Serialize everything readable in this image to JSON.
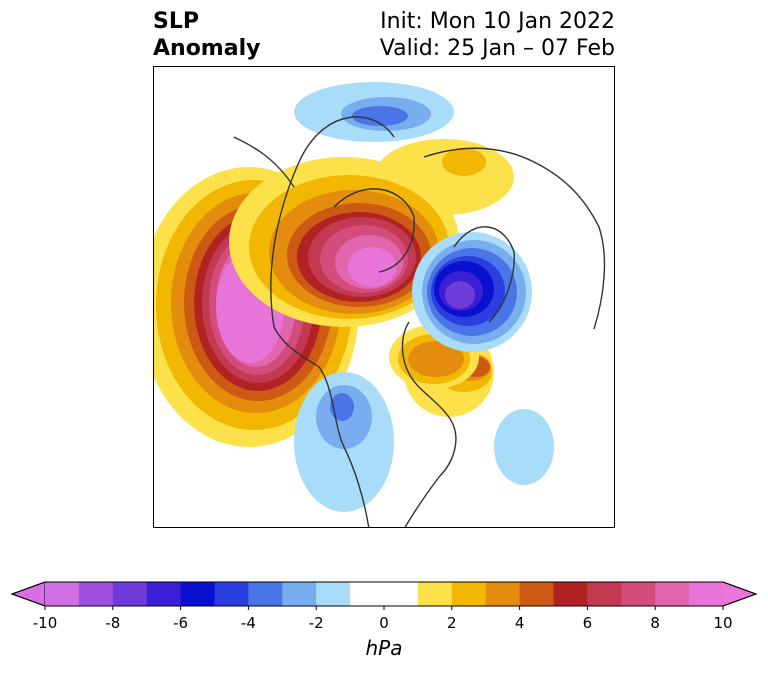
{
  "title": {
    "left_line1": "SLP",
    "left_line2": "Anomaly",
    "right_line1": "Init: Mon 10 Jan 2022",
    "right_line2": "Valid: 25 Jan – 07 Feb"
  },
  "colorbar": {
    "unit": "hPa",
    "min": -10,
    "max": 10,
    "extend": "both",
    "ticks": [
      "-10",
      "-8",
      "-6",
      "-4",
      "-2",
      "0",
      "2",
      "4",
      "6",
      "8",
      "10"
    ],
    "bins": [
      {
        "range": [
          -10,
          -9
        ],
        "color": "#d36fe6"
      },
      {
        "range": [
          -9,
          -8
        ],
        "color": "#a050e0"
      },
      {
        "range": [
          -8,
          -7
        ],
        "color": "#6e3bd8"
      },
      {
        "range": [
          -7,
          -6
        ],
        "color": "#3a1fd6"
      },
      {
        "range": [
          -6,
          -5
        ],
        "color": "#0a10cf"
      },
      {
        "range": [
          -5,
          -4
        ],
        "color": "#2b3ee0"
      },
      {
        "range": [
          -4,
          -3
        ],
        "color": "#4a75e6"
      },
      {
        "range": [
          -3,
          -2
        ],
        "color": "#78aef0"
      },
      {
        "range": [
          -2,
          -1
        ],
        "color": "#a9dcf8"
      },
      {
        "range": [
          -1,
          1
        ],
        "color": "#ffffff"
      },
      {
        "range": [
          1,
          2
        ],
        "color": "#fde14a"
      },
      {
        "range": [
          2,
          3
        ],
        "color": "#f1b703"
      },
      {
        "range": [
          3,
          4
        ],
        "color": "#e38c0e"
      },
      {
        "range": [
          4,
          5
        ],
        "color": "#cd5a14"
      },
      {
        "range": [
          5,
          6
        ],
        "color": "#b22222"
      },
      {
        "range": [
          6,
          7
        ],
        "color": "#c23a52"
      },
      {
        "range": [
          7,
          8
        ],
        "color": "#d44c7c"
      },
      {
        "range": [
          8,
          9
        ],
        "color": "#e066ae"
      },
      {
        "range": [
          9,
          10
        ],
        "color": "#e874d8"
      }
    ],
    "under_color": "#d86fe6",
    "over_color": "#ec77dc"
  },
  "map": {
    "projection": "north-polar-stereographic",
    "field": "SLP anomaly",
    "anomalies": [
      {
        "name": "north-pacific-high",
        "sign": "positive",
        "peak": 10
      },
      {
        "name": "arctic-canada-greenland-high",
        "sign": "positive",
        "peak": 9
      },
      {
        "name": "eurasia-high-ridge",
        "sign": "positive",
        "peak": 2
      },
      {
        "name": "hudson-bay-high",
        "sign": "positive",
        "peak": 6
      },
      {
        "name": "scandinavia-low",
        "sign": "negative",
        "peak": -8
      },
      {
        "name": "barents-kara-low",
        "sign": "negative",
        "peak": -4
      },
      {
        "name": "western-us-low",
        "sign": "negative",
        "peak": -3
      },
      {
        "name": "atlantic-low",
        "sign": "negative",
        "peak": -2
      }
    ]
  }
}
